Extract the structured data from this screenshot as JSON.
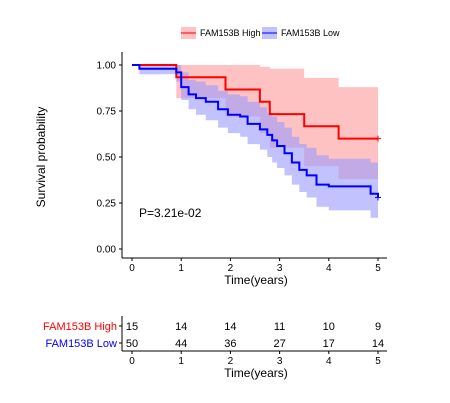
{
  "chart_data": {
    "type": "line",
    "subtype": "kaplan-meier",
    "xlabel": "Time(years)",
    "ylabel": "Survival probability",
    "xlim": [
      0,
      5
    ],
    "ylim": [
      0,
      1
    ],
    "x_ticks": [
      "0",
      "1",
      "2",
      "3",
      "4",
      "5"
    ],
    "y_ticks": [
      "0.00",
      "0.25",
      "0.50",
      "0.75",
      "1.00"
    ],
    "grid": false,
    "legend_position": "top",
    "annotation": "P=3.21e-02",
    "series": [
      {
        "name": "FAM153B High",
        "color": "#ff0000",
        "band_color": "#ff9999",
        "steps": [
          [
            0,
            1.0
          ],
          [
            0.9,
            0.933
          ],
          [
            1.9,
            0.867
          ],
          [
            2.6,
            0.8
          ],
          [
            2.8,
            0.733
          ],
          [
            3.5,
            0.667
          ],
          [
            4.2,
            0.6
          ],
          [
            5,
            0.6
          ]
        ],
        "lower": [
          [
            0,
            1.0
          ],
          [
            0.9,
            0.82
          ],
          [
            1.9,
            0.72
          ],
          [
            2.6,
            0.63
          ],
          [
            2.8,
            0.55
          ],
          [
            3.5,
            0.45
          ],
          [
            4.2,
            0.38
          ],
          [
            5,
            0.38
          ]
        ],
        "upper": [
          [
            0,
            1.0
          ],
          [
            0.9,
            1.0
          ],
          [
            1.9,
            1.0
          ],
          [
            2.6,
            0.99
          ],
          [
            2.8,
            0.98
          ],
          [
            3.5,
            0.93
          ],
          [
            4.2,
            0.88
          ],
          [
            5,
            0.88
          ]
        ]
      },
      {
        "name": "FAM153B Low",
        "color": "#0000ff",
        "band_color": "#9999ff",
        "steps": [
          [
            0,
            1.0
          ],
          [
            0.15,
            0.98
          ],
          [
            0.9,
            0.96
          ],
          [
            1.0,
            0.88
          ],
          [
            1.15,
            0.84
          ],
          [
            1.3,
            0.82
          ],
          [
            1.5,
            0.8
          ],
          [
            1.75,
            0.76
          ],
          [
            1.95,
            0.73
          ],
          [
            2.2,
            0.72
          ],
          [
            2.35,
            0.68
          ],
          [
            2.6,
            0.65
          ],
          [
            2.75,
            0.62
          ],
          [
            2.85,
            0.59
          ],
          [
            2.95,
            0.56
          ],
          [
            3.1,
            0.52
          ],
          [
            3.25,
            0.47
          ],
          [
            3.4,
            0.43
          ],
          [
            3.55,
            0.4
          ],
          [
            3.75,
            0.35
          ],
          [
            4.0,
            0.34
          ],
          [
            4.85,
            0.3
          ],
          [
            5,
            0.28
          ]
        ],
        "lower": [
          [
            0,
            1.0
          ],
          [
            0.15,
            0.95
          ],
          [
            0.9,
            0.91
          ],
          [
            1.0,
            0.81
          ],
          [
            1.15,
            0.76
          ],
          [
            1.3,
            0.73
          ],
          [
            1.5,
            0.7
          ],
          [
            1.75,
            0.66
          ],
          [
            1.95,
            0.63
          ],
          [
            2.2,
            0.61
          ],
          [
            2.35,
            0.57
          ],
          [
            2.6,
            0.54
          ],
          [
            2.75,
            0.5
          ],
          [
            2.85,
            0.47
          ],
          [
            2.95,
            0.44
          ],
          [
            3.1,
            0.4
          ],
          [
            3.25,
            0.35
          ],
          [
            3.4,
            0.31
          ],
          [
            3.55,
            0.28
          ],
          [
            3.75,
            0.23
          ],
          [
            4.0,
            0.21
          ],
          [
            4.85,
            0.17
          ],
          [
            5,
            0.15
          ]
        ],
        "upper": [
          [
            0,
            1.0
          ],
          [
            0.15,
            1.0
          ],
          [
            0.9,
            1.0
          ],
          [
            1.0,
            0.96
          ],
          [
            1.15,
            0.92
          ],
          [
            1.3,
            0.91
          ],
          [
            1.5,
            0.89
          ],
          [
            1.75,
            0.86
          ],
          [
            1.95,
            0.84
          ],
          [
            2.2,
            0.83
          ],
          [
            2.35,
            0.8
          ],
          [
            2.6,
            0.77
          ],
          [
            2.75,
            0.74
          ],
          [
            2.85,
            0.72
          ],
          [
            2.95,
            0.69
          ],
          [
            3.1,
            0.66
          ],
          [
            3.25,
            0.61
          ],
          [
            3.4,
            0.57
          ],
          [
            3.55,
            0.55
          ],
          [
            3.75,
            0.51
          ],
          [
            4.0,
            0.49
          ],
          [
            4.85,
            0.47
          ],
          [
            5,
            0.46
          ]
        ]
      }
    ],
    "risk_table": {
      "xlabel": "Time(years)",
      "times": [
        "0",
        "1",
        "2",
        "3",
        "4",
        "5"
      ],
      "rows": [
        {
          "label": "FAM153B High",
          "color": "#ff0000",
          "counts": [
            "15",
            "14",
            "14",
            "11",
            "10",
            "9"
          ]
        },
        {
          "label": "FAM153B Low",
          "color": "#0000ff",
          "counts": [
            "50",
            "44",
            "36",
            "27",
            "17",
            "14"
          ]
        }
      ]
    }
  }
}
